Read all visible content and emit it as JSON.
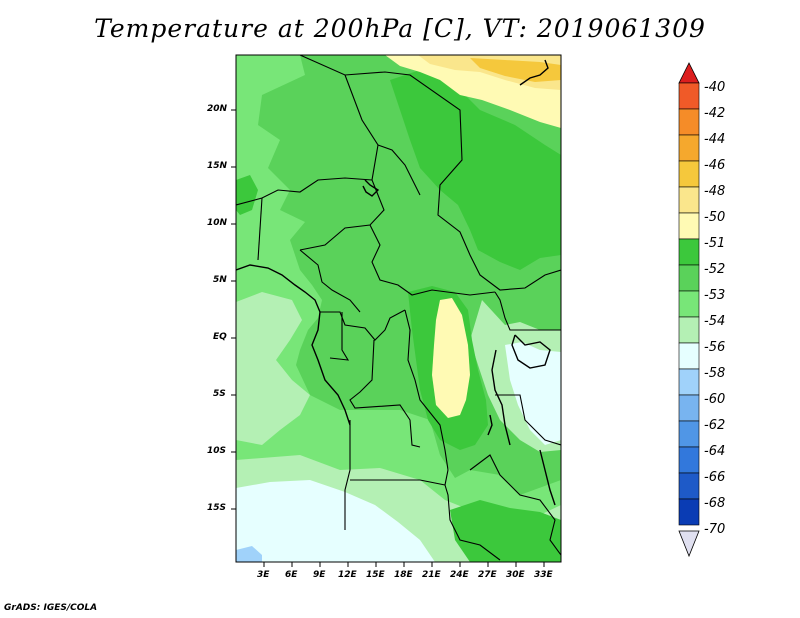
{
  "title": "Temperature at 200hPa [C], VT: 2019061309",
  "credit": "GrADS: IGES/COLA",
  "map": {
    "variable": "Temperature",
    "level": "200hPa",
    "units": "C",
    "valid_time": "2019061309",
    "lat_labels": [
      "20N",
      "15N",
      "10N",
      "5N",
      "EQ",
      "5S",
      "10S",
      "15S"
    ],
    "lon_labels": [
      "3E",
      "6E",
      "9E",
      "12E",
      "15E",
      "18E",
      "21E",
      "24E",
      "27E",
      "30E",
      "33E"
    ]
  },
  "colorbar": {
    "labels": [
      "-40",
      "-42",
      "-44",
      "-46",
      "-48",
      "-50",
      "-51",
      "-52",
      "-53",
      "-54",
      "-56",
      "-58",
      "-60",
      "-62",
      "-64",
      "-66",
      "-68",
      "-70"
    ],
    "colors": [
      "#e8321e",
      "#f05a28",
      "#f58c28",
      "#f5a82d",
      "#f5c83c",
      "#fae68c",
      "#fffab4",
      "#3cc83c",
      "#5ad25a",
      "#78e678",
      "#b4f0b4",
      "#e6ffff",
      "#a0d2fa",
      "#78b4f0",
      "#5096e6",
      "#3278dc",
      "#1e5ac8",
      "#0a3cb4",
      "#00148c"
    ],
    "end_colors": [
      "#dc1e1e",
      "#1a0d6e",
      "#e0e0f0"
    ]
  },
  "colors": {
    "l51": "#fffab4",
    "l52": "#3cc83c",
    "l53": "#5ad25a",
    "l54": "#78e678",
    "l55": "#b4f0b4",
    "l56": "#e6ffff",
    "l58": "#a0d2fa",
    "l50": "#fae68c",
    "l48": "#f5c83c"
  }
}
